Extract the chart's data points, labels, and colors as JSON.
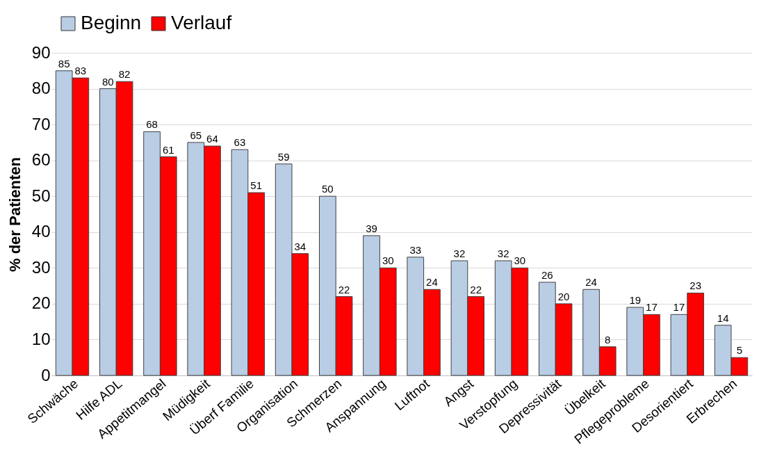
{
  "chart_data": {
    "type": "bar",
    "ylabel": "% der Patienten",
    "categories": [
      "Schwäche",
      "Hilfe ADL",
      "Appetitmangel",
      "Müdigkeit",
      "Überf Familie",
      "Organisation",
      "Schmerzen",
      "Anspannung",
      "Luftnot",
      "Angst",
      "Verstopfung",
      "Depressivität",
      "Übelkeit",
      "Pflegeprobleme",
      "Desorientiert",
      "Erbrechen"
    ],
    "series": [
      {
        "name": "Beginn",
        "color": "#b9cde5",
        "values": [
          85,
          80,
          68,
          65,
          63,
          59,
          50,
          39,
          33,
          32,
          32,
          26,
          24,
          19,
          17,
          14
        ]
      },
      {
        "name": "Verlauf",
        "color": "#ff0000",
        "values": [
          83,
          82,
          61,
          64,
          51,
          34,
          22,
          30,
          24,
          22,
          30,
          20,
          8,
          17,
          23,
          5
        ]
      }
    ],
    "ylim": [
      0,
      90
    ],
    "yticks": [
      0,
      10,
      20,
      30,
      40,
      50,
      60,
      70,
      80,
      90
    ],
    "grid": "y",
    "legend": "top",
    "data_labels": true
  }
}
